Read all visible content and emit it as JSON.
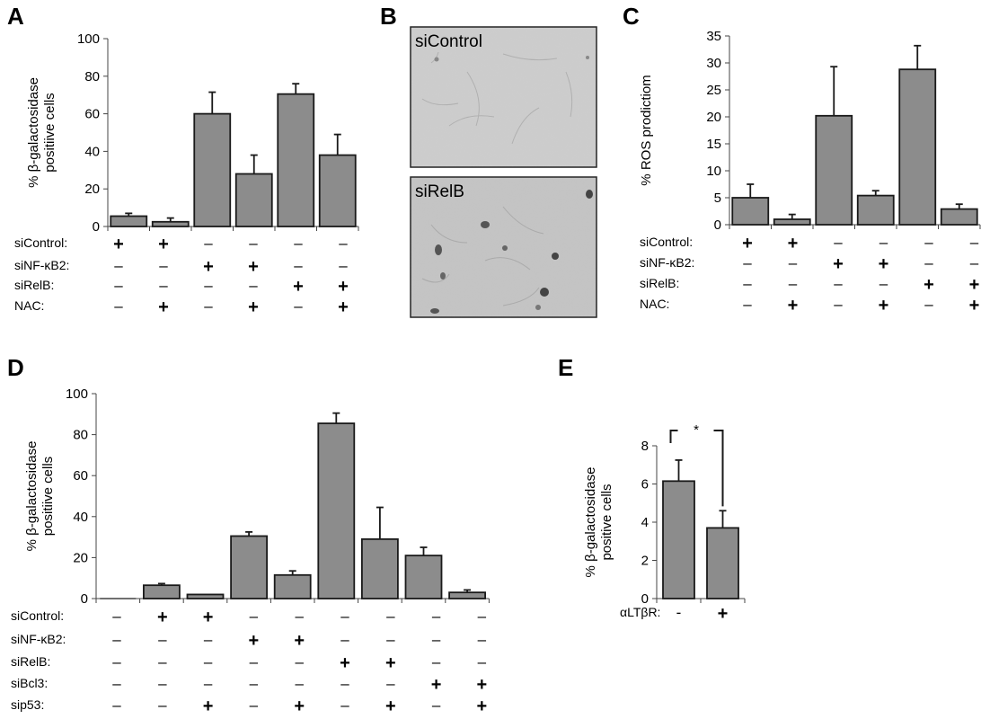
{
  "panels": {
    "A": "A",
    "B": "B",
    "C": "C",
    "D": "D",
    "E": "E"
  },
  "micrographs": {
    "top_label": "siControl",
    "bottom_label": "siRelB"
  },
  "chart_data": [
    {
      "id": "A",
      "type": "bar",
      "ylabel_lines": [
        "% β-galactosidase",
        "positiive cells"
      ],
      "ylim": [
        0,
        100
      ],
      "yticks": [
        "0",
        "20",
        "40",
        "60",
        "80",
        "100"
      ],
      "values": [
        5.5,
        2.5,
        60,
        28,
        70.5,
        38
      ],
      "errors": [
        1.5,
        2,
        11.5,
        10,
        5.5,
        11
      ],
      "conditions": [
        {
          "label": "siControl:",
          "signs": [
            "+",
            "+",
            "–",
            "–",
            "–",
            "–"
          ]
        },
        {
          "label": "siNF-κB2:",
          "signs": [
            "–",
            "–",
            "+",
            "+",
            "–",
            "–"
          ]
        },
        {
          "label": "siRelB:",
          "signs": [
            "–",
            "–",
            "–",
            "–",
            "+",
            "+"
          ]
        },
        {
          "label": "NAC:",
          "signs": [
            "–",
            "+",
            "–",
            "+",
            "–",
            "+"
          ]
        }
      ],
      "bar_color": "#8c8c8c"
    },
    {
      "id": "C",
      "type": "bar",
      "ylabel_lines": [
        "% ROS prodictiom"
      ],
      "ylim": [
        0,
        35
      ],
      "yticks": [
        "0",
        "5",
        "10",
        "15",
        "20",
        "25",
        "30",
        "35"
      ],
      "values": [
        5,
        1,
        20.2,
        5.4,
        28.8,
        2.9
      ],
      "errors": [
        2.5,
        0.9,
        9.1,
        0.9,
        4.4,
        0.9
      ],
      "conditions": [
        {
          "label": "siControl:",
          "signs": [
            "+",
            "+",
            "–",
            "–",
            "–",
            "–"
          ]
        },
        {
          "label": "siNF-κB2:",
          "signs": [
            "–",
            "–",
            "+",
            "+",
            "–",
            "–"
          ]
        },
        {
          "label": "siRelB:",
          "signs": [
            "–",
            "–",
            "–",
            "–",
            "+",
            "+"
          ]
        },
        {
          "label": "NAC:",
          "signs": [
            "–",
            "+",
            "–",
            "+",
            "–",
            "+"
          ]
        }
      ],
      "bar_color": "#8c8c8c"
    },
    {
      "id": "D",
      "type": "bar",
      "ylabel_lines": [
        "% β-galactosidase",
        "positiive cells"
      ],
      "ylim": [
        0,
        100
      ],
      "yticks": [
        "0",
        "20",
        "40",
        "60",
        "80",
        "100"
      ],
      "values": [
        0,
        6.5,
        2,
        30.5,
        11.5,
        85.5,
        29,
        21,
        3
      ],
      "errors": [
        0,
        0.8,
        0,
        2,
        2,
        5,
        15.5,
        4,
        1.2
      ],
      "conditions": [
        {
          "label": "siControl:",
          "signs": [
            "–",
            "+",
            "+",
            "–",
            "–",
            "–",
            "–",
            "–",
            "–"
          ]
        },
        {
          "label": "siNF-κB2:",
          "signs": [
            "–",
            "–",
            "–",
            "+",
            "+",
            "–",
            "–",
            "–",
            "–"
          ]
        },
        {
          "label": "siRelB:",
          "signs": [
            "–",
            "–",
            "–",
            "–",
            "–",
            "+",
            "+",
            "–",
            "–"
          ]
        },
        {
          "label": "siBcl3:",
          "signs": [
            "–",
            "–",
            "–",
            "–",
            "–",
            "–",
            "–",
            "+",
            "+"
          ]
        },
        {
          "label": "sip53:",
          "signs": [
            "–",
            "–",
            "+",
            "–",
            "+",
            "–",
            "+",
            "–",
            "+"
          ]
        }
      ],
      "bar_color": "#8c8c8c"
    },
    {
      "id": "E",
      "type": "bar",
      "ylabel_lines": [
        "% β-galactosidase",
        "positive cells"
      ],
      "ylim": [
        0,
        8
      ],
      "yticks": [
        "0",
        "2",
        "4",
        "6",
        "8"
      ],
      "values": [
        6.15,
        3.7
      ],
      "errors": [
        1.1,
        0.9
      ],
      "conditions": [
        {
          "label": "αLTβR:",
          "signs": [
            "-",
            "+"
          ]
        }
      ],
      "significance": "*",
      "bar_color": "#8c8c8c"
    }
  ]
}
